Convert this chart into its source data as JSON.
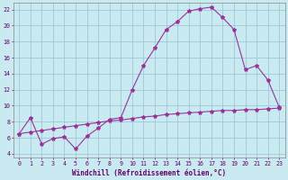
{
  "xlabel": "Windchill (Refroidissement éolien,°C)",
  "bg_color": "#c8eaf0",
  "grid_color": "#a0c8d8",
  "line_color": "#993399",
  "xlim": [
    -0.5,
    23.5
  ],
  "ylim": [
    3.5,
    22.8
  ],
  "xticks": [
    0,
    1,
    2,
    3,
    4,
    5,
    6,
    7,
    8,
    9,
    10,
    11,
    12,
    13,
    14,
    15,
    16,
    17,
    18,
    19,
    20,
    21,
    22,
    23
  ],
  "yticks": [
    4,
    6,
    8,
    10,
    12,
    14,
    16,
    18,
    20,
    22
  ],
  "curve1_x": [
    0,
    1,
    2,
    3,
    4,
    5,
    6,
    7,
    8,
    9,
    10,
    11,
    12,
    13,
    14,
    15,
    16,
    17,
    18,
    19,
    20,
    21,
    22,
    23
  ],
  "curve1_y": [
    6.5,
    8.5,
    5.2,
    5.9,
    6.1,
    4.6,
    6.2,
    7.2,
    8.3,
    8.5,
    12.0,
    15.0,
    17.2,
    19.5,
    20.5,
    21.8,
    22.1,
    22.3,
    21.0,
    19.5,
    14.5,
    15.0,
    13.2,
    9.8
  ],
  "curve2_x": [
    0,
    1,
    2,
    3,
    4,
    5,
    6,
    7,
    8,
    9,
    10,
    11,
    12,
    13,
    14,
    15,
    16,
    17,
    18,
    19,
    20,
    21,
    22,
    23
  ],
  "curve2_y": [
    6.5,
    6.7,
    6.9,
    7.1,
    7.3,
    7.5,
    7.7,
    7.9,
    8.1,
    8.2,
    8.4,
    8.6,
    8.7,
    8.9,
    9.0,
    9.1,
    9.2,
    9.3,
    9.4,
    9.4,
    9.5,
    9.5,
    9.6,
    9.7
  ],
  "font_family": "monospace",
  "label_fontsize": 5.5,
  "tick_fontsize": 4.8,
  "marker_size": 3.0,
  "line_width": 0.8
}
